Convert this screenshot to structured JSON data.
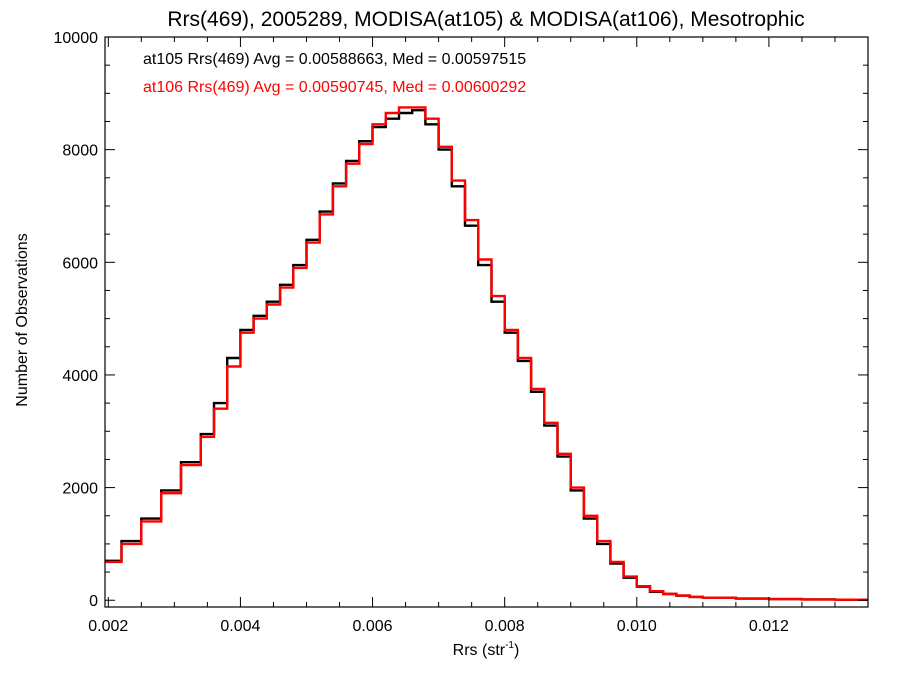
{
  "chart_data": {
    "type": "line",
    "title": "Rrs(469), 2005289, MODISA(at105) & MODISA(at106), Mesotrophic",
    "xlabel_main": "Rrs (str",
    "xlabel_sup": "-1",
    "xlabel_close": ")",
    "ylabel": "Number of Observations",
    "xlim": [
      0.00195,
      0.0135
    ],
    "ylim": [
      -120,
      10000
    ],
    "xticks": [
      0.002,
      0.004,
      0.006,
      0.008,
      0.01,
      0.012
    ],
    "xtick_labels": [
      "0.002",
      "0.004",
      "0.006",
      "0.008",
      "0.010",
      "0.012"
    ],
    "yticks": [
      0,
      2000,
      4000,
      6000,
      8000,
      10000
    ],
    "ytick_labels": [
      "0",
      "2000",
      "4000",
      "6000",
      "8000",
      "10000"
    ],
    "grid": false,
    "legend_position": "top-left",
    "series": [
      {
        "name": "at105 Rrs(469) Avg = 0.00588663, Med = 0.00597515",
        "color": "#000000",
        "x": [
          0.00195,
          0.0022,
          0.0025,
          0.0028,
          0.0031,
          0.0034,
          0.0036,
          0.0038,
          0.004,
          0.0042,
          0.0044,
          0.0046,
          0.0048,
          0.005,
          0.0052,
          0.0054,
          0.0056,
          0.0058,
          0.006,
          0.0062,
          0.0064,
          0.0066,
          0.0068,
          0.007,
          0.0072,
          0.0074,
          0.0076,
          0.0078,
          0.008,
          0.0082,
          0.0084,
          0.0086,
          0.0088,
          0.009,
          0.0092,
          0.0094,
          0.0096,
          0.0098,
          0.01,
          0.0102,
          0.0104,
          0.0106,
          0.0108,
          0.011,
          0.0115,
          0.012,
          0.0125,
          0.013,
          0.0135
        ],
        "y": [
          700,
          1050,
          1450,
          1950,
          2450,
          2950,
          3500,
          4300,
          4800,
          5050,
          5300,
          5600,
          5950,
          6400,
          6900,
          7400,
          7800,
          8150,
          8400,
          8550,
          8650,
          8700,
          8450,
          8000,
          7350,
          6650,
          5950,
          5300,
          4750,
          4250,
          3700,
          3100,
          2550,
          1950,
          1450,
          1000,
          650,
          400,
          240,
          150,
          110,
          80,
          60,
          45,
          30,
          20,
          15,
          10,
          5
        ]
      },
      {
        "name": "at106 Rrs(469) Avg = 0.00590745, Med = 0.00600292",
        "color": "#ff0000",
        "x": [
          0.00195,
          0.0022,
          0.0025,
          0.0028,
          0.0031,
          0.0034,
          0.0036,
          0.0038,
          0.004,
          0.0042,
          0.0044,
          0.0046,
          0.0048,
          0.005,
          0.0052,
          0.0054,
          0.0056,
          0.0058,
          0.006,
          0.0062,
          0.0064,
          0.0066,
          0.0068,
          0.007,
          0.0072,
          0.0074,
          0.0076,
          0.0078,
          0.008,
          0.0082,
          0.0084,
          0.0086,
          0.0088,
          0.009,
          0.0092,
          0.0094,
          0.0096,
          0.0098,
          0.01,
          0.0102,
          0.0104,
          0.0106,
          0.0108,
          0.011,
          0.0115,
          0.012,
          0.0125,
          0.013,
          0.0135
        ],
        "y": [
          680,
          1000,
          1400,
          1900,
          2400,
          2900,
          3400,
          4150,
          4750,
          5000,
          5250,
          5550,
          5900,
          6350,
          6850,
          7350,
          7750,
          8100,
          8450,
          8650,
          8750,
          8750,
          8550,
          8050,
          7450,
          6750,
          6050,
          5400,
          4800,
          4300,
          3750,
          3150,
          2600,
          2000,
          1500,
          1050,
          680,
          420,
          250,
          160,
          115,
          85,
          60,
          45,
          30,
          20,
          15,
          10,
          5
        ]
      }
    ]
  }
}
